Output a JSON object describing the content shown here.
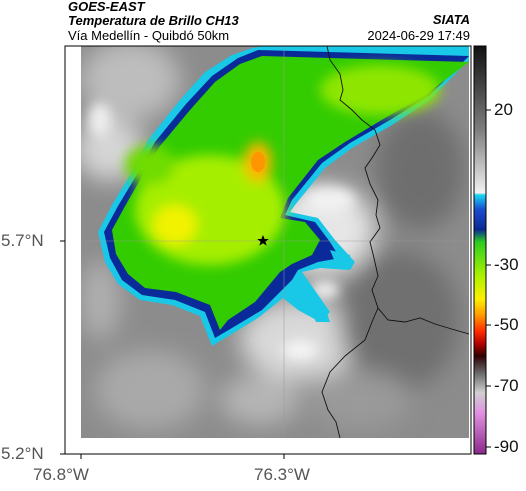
{
  "header": {
    "satellite": "GOES-EAST",
    "product": "Temperatura de Brillo CH13",
    "region": "Vía Medellín - Quibdó 50km",
    "agency": "SIATA",
    "datetime": "2024-06-29 17:49"
  },
  "axes": {
    "lat_labels": [
      "5.7°N",
      "5.2°N"
    ],
    "lon_labels": [
      "76.8°W",
      "76.3°W"
    ]
  },
  "colorbar": {
    "labels": [
      "20",
      "-30",
      "-50",
      "-70",
      "-90"
    ]
  },
  "colors": {
    "cold_core": "#ffd000",
    "green": "#33cc00",
    "yellow_green": "#c8f000",
    "blue_edge": "#0a2a9a",
    "cyan_edge": "#19c8e6"
  }
}
